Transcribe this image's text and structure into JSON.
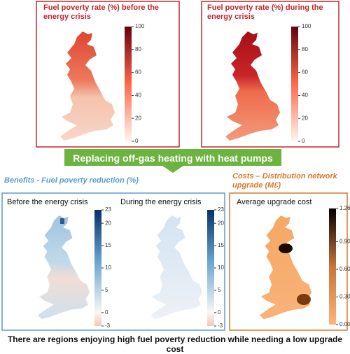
{
  "panels": [
    {
      "title": "Fuel poverty rate (%) before the energy crisis",
      "colorbar_ticks": [
        100,
        80,
        60,
        40,
        20,
        0
      ]
    },
    {
      "title": "Fuel poverty rate (%) during the energy crisis",
      "colorbar_ticks": [
        100,
        80,
        60,
        40,
        20,
        0
      ]
    }
  ],
  "banner": "Replacing off-gas heating with heat pumps",
  "benefits": {
    "heading": "Benefits - Fuel poverty reduction (%)",
    "maps": [
      {
        "title": "Before the energy crisis"
      },
      {
        "title": "During the energy crisis"
      }
    ],
    "colorbar_ticks": [
      23,
      20,
      15,
      10,
      5,
      0,
      -3
    ]
  },
  "costs": {
    "heading": "Costs – Distribution network upgrade (M£)",
    "map_title": "Average upgrade cost",
    "colorbar_ticks": [
      "1.26",
      "0.90",
      "0.60",
      "0.30",
      "0.00"
    ]
  },
  "conclusion": "There are regions enjoying high fuel poverty reduction while needing a low upgrade cost"
}
